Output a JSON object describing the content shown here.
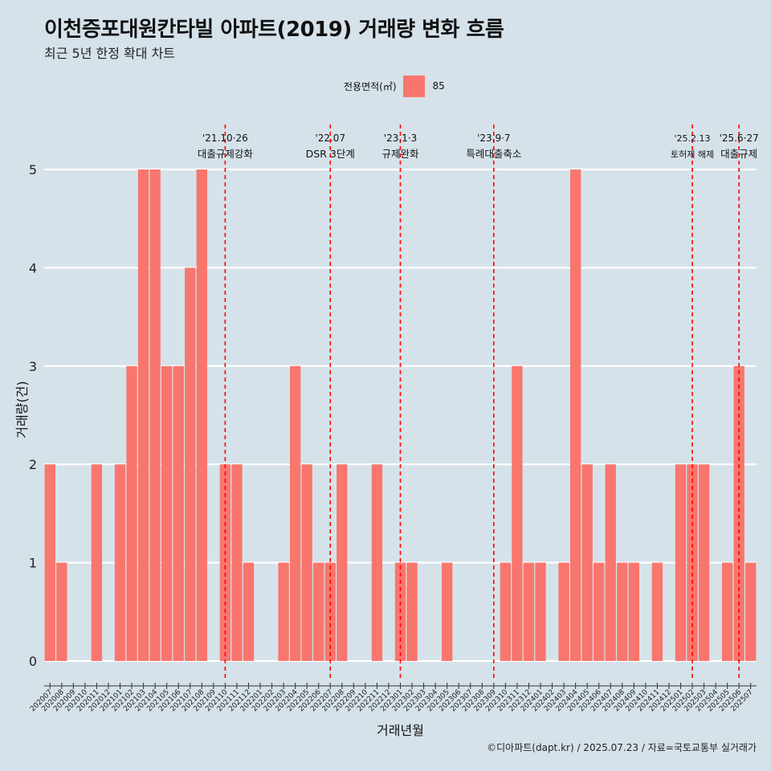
{
  "header": {
    "title": "이천증포대원칸타빌 아파트(2019) 거래량 변화 흐름",
    "subtitle": "최근 5년 한정 확대 차트"
  },
  "legend": {
    "title": "전용면적(㎡)",
    "entries": [
      {
        "label": "85",
        "color": "#f8766d"
      }
    ]
  },
  "footer": {
    "caption": "©디아파트(dapt.kr) / 2025.07.23 / 자료=국토교통부 실거래가"
  },
  "colors": {
    "background": "#d6e2ea",
    "bar": "#f8766d",
    "grid": "#ffffff",
    "event_line": "#ff0000"
  },
  "chart_data": {
    "type": "bar",
    "xlabel": "거래년월",
    "ylabel": "거래량(건)",
    "ylim": [
      0,
      5
    ],
    "y_ticks": [
      0,
      1,
      2,
      3,
      4,
      5
    ],
    "grid": true,
    "legend_position": "top-center",
    "categories": [
      "202007",
      "202008",
      "202009",
      "202010",
      "202011",
      "202012",
      "202101",
      "202102",
      "202103",
      "202104",
      "202105",
      "202106",
      "202107",
      "202108",
      "202109",
      "202110",
      "202111",
      "202112",
      "202201",
      "202202",
      "202203",
      "202204",
      "202205",
      "202206",
      "202207",
      "202208",
      "202209",
      "202210",
      "202211",
      "202212",
      "202301",
      "202302",
      "202303",
      "202304",
      "202305",
      "202306",
      "202307",
      "202308",
      "202309",
      "202310",
      "202311",
      "202312",
      "202401",
      "202402",
      "202403",
      "202404",
      "202405",
      "202406",
      "202407",
      "202408",
      "202409",
      "202410",
      "202411",
      "202412",
      "202501",
      "202502",
      "202503",
      "202504",
      "202505",
      "202506",
      "202507"
    ],
    "series": [
      {
        "name": "85",
        "values": [
          2,
          1,
          0,
          0,
          2,
          0,
          2,
          3,
          5,
          5,
          3,
          3,
          4,
          5,
          0,
          2,
          2,
          1,
          0,
          0,
          1,
          3,
          2,
          1,
          1,
          2,
          0,
          0,
          2,
          0,
          1,
          1,
          0,
          0,
          1,
          0,
          0,
          0,
          0,
          1,
          3,
          1,
          1,
          0,
          1,
          5,
          2,
          1,
          2,
          1,
          1,
          0,
          1,
          0,
          2,
          2,
          2,
          0,
          1,
          3,
          1
        ]
      }
    ],
    "annotations": [
      {
        "at": "202110",
        "date": "'21.10·26",
        "label": "대출규제강화"
      },
      {
        "at": "202207",
        "date": "'22.07",
        "label": "DSR 3단계"
      },
      {
        "at": "202301",
        "date": "'23.1·3",
        "label": "규제완화"
      },
      {
        "at": "202309",
        "date": "'23.9·7",
        "label": "특례대출축소"
      },
      {
        "at": "202502",
        "date": "'25.2.13",
        "label": "토허제 해제"
      },
      {
        "at": "202506",
        "date": "'25.6·27",
        "label": "대출규제"
      }
    ]
  }
}
